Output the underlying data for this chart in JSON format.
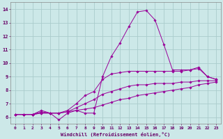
{
  "xlabel": "Windchill (Refroidissement éolien,°C)",
  "bg_color": "#cce8e8",
  "line_color": "#990099",
  "grid_color": "#aacccc",
  "xlim": [
    -0.5,
    23.5
  ],
  "ylim": [
    5.5,
    14.5
  ],
  "yticks": [
    6,
    7,
    8,
    9,
    10,
    11,
    12,
    13,
    14
  ],
  "xticks": [
    0,
    1,
    2,
    3,
    4,
    5,
    6,
    7,
    8,
    9,
    10,
    11,
    12,
    13,
    14,
    15,
    16,
    17,
    18,
    19,
    20,
    21,
    22,
    23
  ],
  "series": [
    {
      "x": [
        0,
        1,
        2,
        3,
        4,
        5,
        6,
        7,
        8,
        9,
        10,
        11,
        12,
        13,
        14,
        15,
        16,
        17,
        18,
        19,
        20,
        21,
        22,
        23
      ],
      "y": [
        6.2,
        6.2,
        6.2,
        6.5,
        6.3,
        5.8,
        6.3,
        6.5,
        6.3,
        6.3,
        9.0,
        10.5,
        11.5,
        12.7,
        13.8,
        13.9,
        13.2,
        11.4,
        9.5,
        9.5,
        9.5,
        9.7,
        9.0,
        8.8
      ]
    },
    {
      "x": [
        0,
        1,
        2,
        3,
        4,
        5,
        6,
        7,
        8,
        9,
        10,
        11,
        12,
        13,
        14,
        15,
        16,
        17,
        18,
        19,
        20,
        21,
        22,
        23
      ],
      "y": [
        6.2,
        6.2,
        6.2,
        6.4,
        6.3,
        6.3,
        6.5,
        7.0,
        7.6,
        7.9,
        8.8,
        9.2,
        9.3,
        9.4,
        9.4,
        9.4,
        9.4,
        9.4,
        9.4,
        9.4,
        9.5,
        9.6,
        9.0,
        8.8
      ]
    },
    {
      "x": [
        0,
        1,
        2,
        3,
        4,
        5,
        6,
        7,
        8,
        9,
        10,
        11,
        12,
        13,
        14,
        15,
        16,
        17,
        18,
        19,
        20,
        21,
        22,
        23
      ],
      "y": [
        6.2,
        6.2,
        6.2,
        6.3,
        6.3,
        6.3,
        6.4,
        6.7,
        7.0,
        7.3,
        7.7,
        7.9,
        8.1,
        8.3,
        8.4,
        8.4,
        8.5,
        8.5,
        8.5,
        8.6,
        8.6,
        8.7,
        8.7,
        8.7
      ]
    },
    {
      "x": [
        0,
        1,
        2,
        3,
        4,
        5,
        6,
        7,
        8,
        9,
        10,
        11,
        12,
        13,
        14,
        15,
        16,
        17,
        18,
        19,
        20,
        21,
        22,
        23
      ],
      "y": [
        6.2,
        6.2,
        6.2,
        6.3,
        6.3,
        6.3,
        6.4,
        6.5,
        6.6,
        6.7,
        6.9,
        7.1,
        7.3,
        7.4,
        7.6,
        7.7,
        7.8,
        7.9,
        8.0,
        8.1,
        8.2,
        8.4,
        8.5,
        8.6
      ]
    }
  ]
}
